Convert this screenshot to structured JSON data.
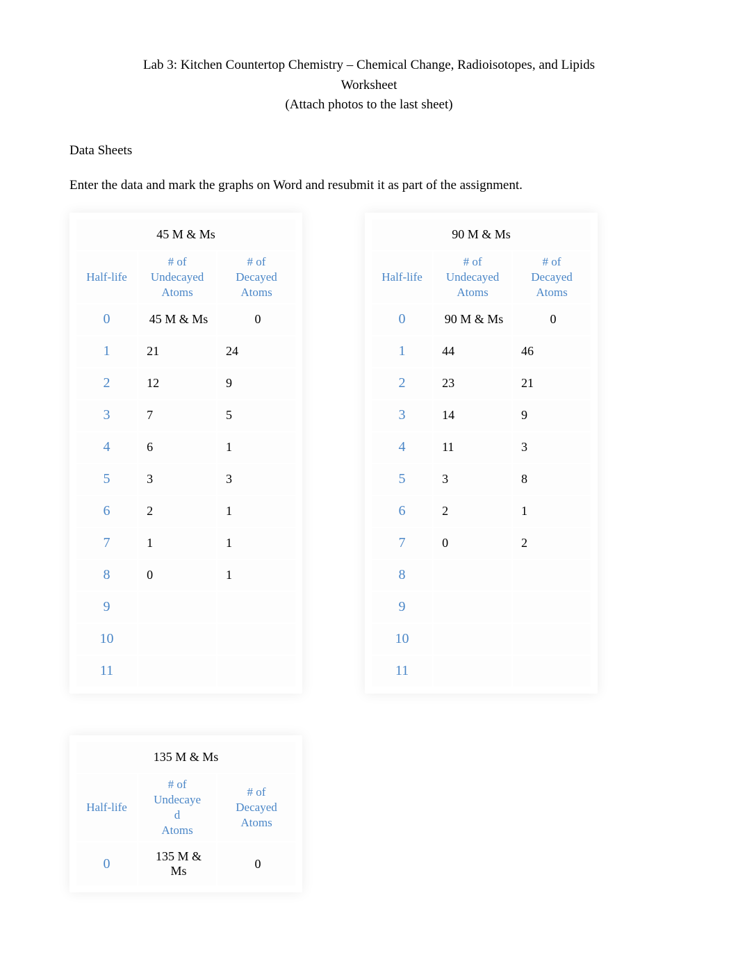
{
  "header": {
    "line1": "Lab 3: Kitchen Countertop Chemistry – Chemical Change, Radioisotopes, and Lipids",
    "line2": "Worksheet",
    "line3": "(Attach photos to the last sheet)"
  },
  "section_title": "Data Sheets",
  "instruction": "Enter the data and mark the graphs on Word and resubmit it as part of the assignment.",
  "colors": {
    "header_blue": "#4a86c7",
    "text_black": "#000000",
    "cell_bg": "#fdfdfd",
    "page_bg": "#ffffff"
  },
  "table1": {
    "title": "45 M & Ms",
    "headers": {
      "col1": "Half-life",
      "col2": "# of Undecayed Atoms",
      "col3": "# of Decayed Atoms"
    },
    "rows": [
      {
        "hl": "0",
        "undecayed": "45 M & Ms",
        "decayed": "0",
        "first": true
      },
      {
        "hl": "1",
        "undecayed": "21",
        "decayed": "24"
      },
      {
        "hl": "2",
        "undecayed": "12",
        "decayed": "9"
      },
      {
        "hl": "3",
        "undecayed": "7",
        "decayed": "5"
      },
      {
        "hl": "4",
        "undecayed": "6",
        "decayed": "1"
      },
      {
        "hl": "5",
        "undecayed": "3",
        "decayed": "3"
      },
      {
        "hl": "6",
        "undecayed": "2",
        "decayed": "1"
      },
      {
        "hl": "7",
        "undecayed": "1",
        "decayed": "1"
      },
      {
        "hl": "8",
        "undecayed": "0",
        "decayed": "1"
      },
      {
        "hl": "9",
        "undecayed": "",
        "decayed": ""
      },
      {
        "hl": "10",
        "undecayed": "",
        "decayed": ""
      },
      {
        "hl": "11",
        "undecayed": "",
        "decayed": ""
      }
    ]
  },
  "table2": {
    "title": "90 M & Ms",
    "headers": {
      "col1": "Half-life",
      "col2": "# of Undecayed Atoms",
      "col3": "# of Decayed Atoms"
    },
    "rows": [
      {
        "hl": "0",
        "undecayed": "90 M & Ms",
        "decayed": "0",
        "first": true
      },
      {
        "hl": "1",
        "undecayed": "44",
        "decayed": "46"
      },
      {
        "hl": "2",
        "undecayed": "23",
        "decayed": "21"
      },
      {
        "hl": "3",
        "undecayed": "14",
        "decayed": "9"
      },
      {
        "hl": "4",
        "undecayed": "11",
        "decayed": "3"
      },
      {
        "hl": "5",
        "undecayed": "3",
        "decayed": "8"
      },
      {
        "hl": "6",
        "undecayed": "2",
        "decayed": "1"
      },
      {
        "hl": "7",
        "undecayed": "0",
        "decayed": "2"
      },
      {
        "hl": "8",
        "undecayed": "",
        "decayed": ""
      },
      {
        "hl": "9",
        "undecayed": "",
        "decayed": ""
      },
      {
        "hl": "10",
        "undecayed": "",
        "decayed": ""
      },
      {
        "hl": "11",
        "undecayed": "",
        "decayed": ""
      }
    ]
  },
  "table3": {
    "title": "135  M & Ms",
    "headers": {
      "col1": "Half-life",
      "col2": "# of Undecaye d Atoms",
      "col3": "# of Decayed Atoms"
    },
    "rows": [
      {
        "hl": "0",
        "undecayed": "135 M & Ms",
        "decayed": "0",
        "first": true
      }
    ]
  }
}
